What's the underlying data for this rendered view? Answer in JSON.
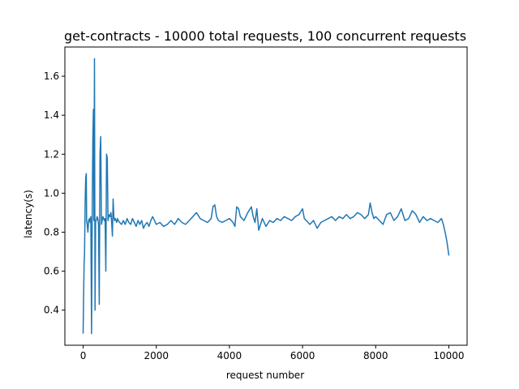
{
  "chart_data": {
    "type": "line",
    "title": "get-contracts - 10000 total requests, 100 concurrent requests",
    "xlabel": "request number",
    "ylabel": "latency(s)",
    "xlim": [
      -500,
      10500
    ],
    "ylim": [
      0.22,
      1.75
    ],
    "xticks": [
      0,
      2000,
      4000,
      6000,
      8000,
      10000
    ],
    "yticks": [
      0.4,
      0.6,
      0.8,
      1.0,
      1.2,
      1.4,
      1.6
    ],
    "grid": false,
    "legend": "none",
    "line_color": "#1f77b4",
    "series": [
      {
        "x": [
          0,
          10,
          25,
          40,
          55,
          70,
          85,
          95,
          110,
          130,
          150,
          170,
          190,
          210,
          230,
          250,
          265,
          280,
          295,
          310,
          325,
          340,
          360,
          380,
          400,
          420,
          440,
          460,
          480,
          500,
          520,
          540,
          560,
          580,
          600,
          620,
          640,
          660,
          680,
          700,
          720,
          740,
          760,
          780,
          800,
          820,
          840,
          860,
          880,
          900,
          920,
          940,
          960,
          1000,
          1050,
          1100,
          1150,
          1200,
          1250,
          1300,
          1350,
          1400,
          1450,
          1500,
          1550,
          1600,
          1650,
          1700,
          1750,
          1800,
          1850,
          1900,
          1950,
          2000,
          2100,
          2200,
          2300,
          2400,
          2500,
          2600,
          2700,
          2800,
          2900,
          3000,
          3100,
          3200,
          3300,
          3400,
          3500,
          3550,
          3600,
          3650,
          3700,
          3800,
          3900,
          4000,
          4100,
          4150,
          4200,
          4250,
          4300,
          4400,
          4500,
          4600,
          4650,
          4700,
          4750,
          4800,
          4900,
          5000,
          5100,
          5200,
          5300,
          5400,
          5500,
          5600,
          5700,
          5800,
          5900,
          6000,
          6050,
          6100,
          6200,
          6300,
          6400,
          6500,
          6600,
          6700,
          6800,
          6900,
          7000,
          7100,
          7200,
          7300,
          7400,
          7500,
          7600,
          7700,
          7800,
          7850,
          7900,
          7950,
          8000,
          8100,
          8200,
          8300,
          8400,
          8500,
          8600,
          8700,
          8800,
          8900,
          9000,
          9100,
          9200,
          9300,
          9400,
          9500,
          9600,
          9700,
          9800,
          9850,
          9900,
          9950,
          10000
        ],
        "values": [
          0.28,
          0.45,
          0.63,
          0.7,
          0.95,
          1.08,
          1.1,
          0.86,
          0.84,
          0.8,
          0.86,
          0.87,
          0.85,
          0.88,
          0.28,
          0.95,
          1.28,
          1.43,
          0.86,
          1.69,
          0.4,
          0.86,
          0.86,
          0.88,
          0.87,
          0.84,
          0.43,
          1.2,
          1.29,
          0.84,
          0.86,
          0.88,
          0.87,
          0.86,
          0.87,
          0.6,
          1.2,
          1.18,
          0.86,
          0.88,
          0.89,
          0.88,
          0.9,
          0.85,
          0.78,
          0.97,
          0.88,
          0.86,
          0.87,
          0.86,
          0.85,
          0.87,
          0.86,
          0.85,
          0.84,
          0.86,
          0.84,
          0.87,
          0.85,
          0.84,
          0.87,
          0.85,
          0.83,
          0.86,
          0.84,
          0.86,
          0.82,
          0.84,
          0.85,
          0.83,
          0.86,
          0.88,
          0.86,
          0.84,
          0.85,
          0.83,
          0.84,
          0.86,
          0.84,
          0.87,
          0.85,
          0.84,
          0.86,
          0.88,
          0.9,
          0.87,
          0.86,
          0.85,
          0.87,
          0.93,
          0.94,
          0.88,
          0.86,
          0.85,
          0.86,
          0.87,
          0.85,
          0.83,
          0.93,
          0.92,
          0.88,
          0.86,
          0.9,
          0.93,
          0.88,
          0.85,
          0.92,
          0.81,
          0.87,
          0.83,
          0.86,
          0.85,
          0.87,
          0.86,
          0.88,
          0.87,
          0.86,
          0.88,
          0.89,
          0.92,
          0.87,
          0.86,
          0.84,
          0.86,
          0.82,
          0.85,
          0.86,
          0.87,
          0.88,
          0.86,
          0.88,
          0.87,
          0.89,
          0.87,
          0.88,
          0.9,
          0.89,
          0.87,
          0.89,
          0.95,
          0.9,
          0.87,
          0.88,
          0.86,
          0.84,
          0.89,
          0.9,
          0.86,
          0.88,
          0.92,
          0.86,
          0.87,
          0.91,
          0.89,
          0.85,
          0.88,
          0.86,
          0.87,
          0.86,
          0.85,
          0.87,
          0.84,
          0.8,
          0.75,
          0.68
        ]
      }
    ]
  }
}
